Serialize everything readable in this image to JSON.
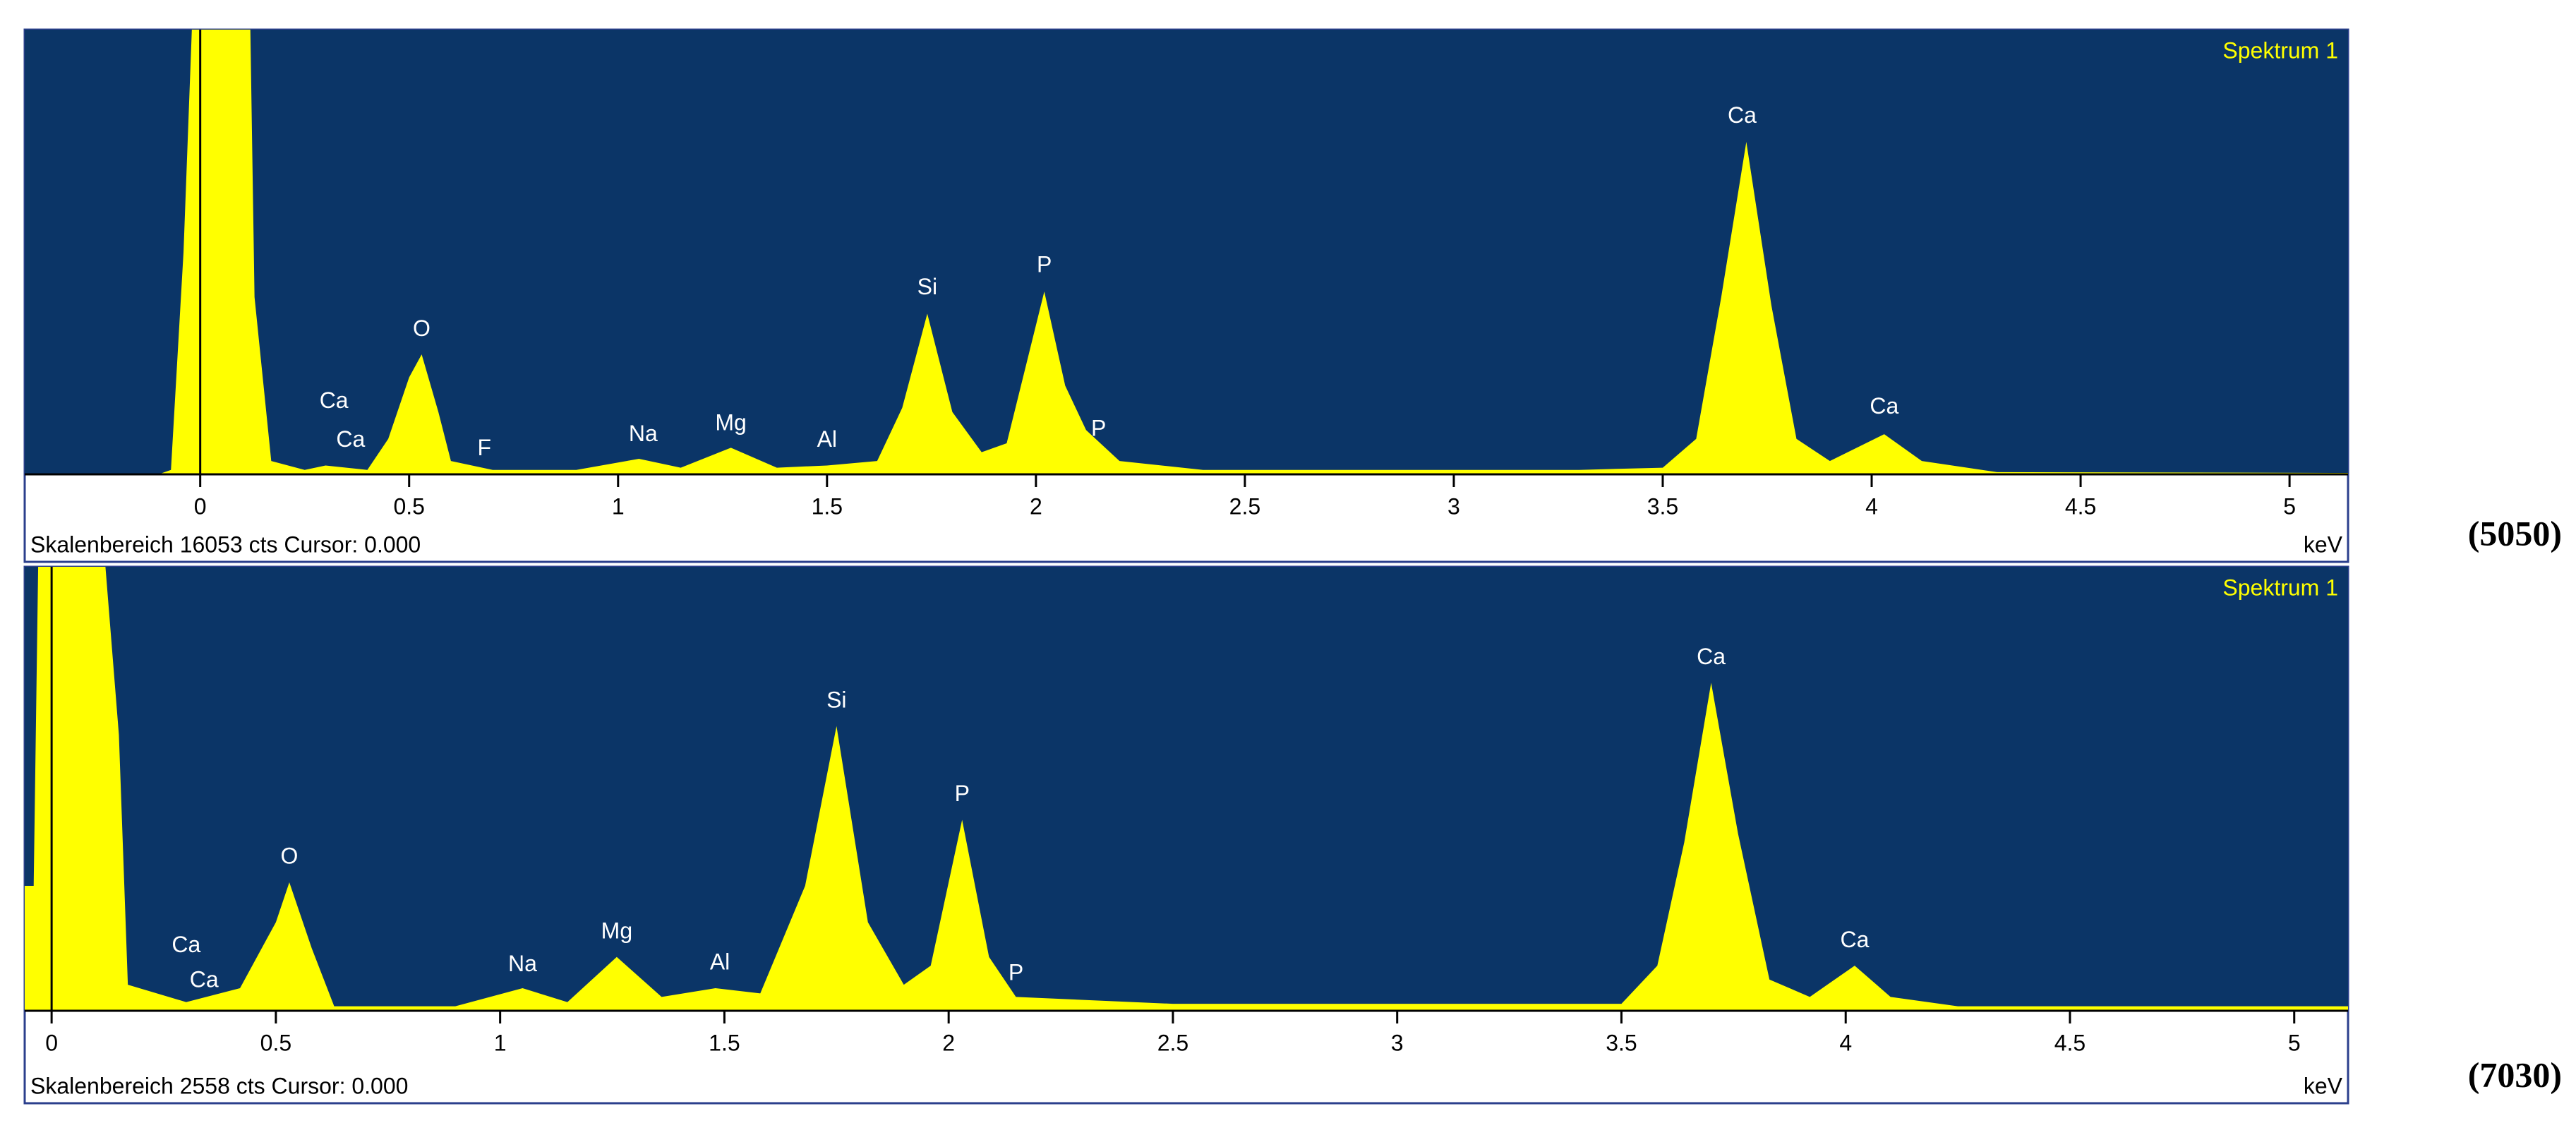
{
  "chart_data": [
    {
      "type": "area",
      "title": "Spektrum 1",
      "sample": "(5050)",
      "footer": "Skalenbereich 16053 cts Cursor: 0.000",
      "unit": "keV",
      "cursor": 0,
      "color": "#ffff00",
      "xlim": [
        -0.42,
        5.14
      ],
      "ylim": [
        0,
        16053
      ],
      "xticks": [
        0,
        0.5,
        1,
        1.5,
        2,
        2.5,
        3,
        3.5,
        4,
        4.5,
        5
      ],
      "x": [
        -0.42,
        -0.1,
        -0.07,
        -0.04,
        -0.02,
        0.12,
        0.13,
        0.17,
        0.25,
        0.3,
        0.4,
        0.45,
        0.5,
        0.53,
        0.57,
        0.6,
        0.7,
        0.9,
        1.05,
        1.15,
        1.27,
        1.38,
        1.5,
        1.62,
        1.68,
        1.74,
        1.8,
        1.87,
        1.93,
        2.02,
        2.07,
        2.12,
        2.2,
        2.4,
        3.0,
        3.3,
        3.5,
        3.58,
        3.64,
        3.7,
        3.76,
        3.82,
        3.9,
        4.03,
        4.12,
        4.3,
        5.14
      ],
      "values": [
        0,
        0,
        160,
        8000,
        16053,
        16053,
        6400,
        480,
        160,
        320,
        160,
        1280,
        3500,
        4330,
        2250,
        480,
        160,
        160,
        560,
        240,
        960,
        240,
        320,
        480,
        2400,
        5800,
        2250,
        800,
        1120,
        6600,
        3200,
        1600,
        480,
        160,
        160,
        160,
        240,
        1280,
        6400,
        12000,
        6100,
        1280,
        480,
        1450,
        480,
        80,
        50
      ],
      "annotations": [
        {
          "text": "Ca",
          "x": 0.32,
          "y": 2100
        },
        {
          "text": "Ca",
          "x": 0.36,
          "y": 700
        },
        {
          "text": "O",
          "x": 0.53,
          "y": 4700
        },
        {
          "text": "F",
          "x": 0.68,
          "y": 400
        },
        {
          "text": "Na",
          "x": 1.06,
          "y": 900
        },
        {
          "text": "Mg",
          "x": 1.27,
          "y": 1300
        },
        {
          "text": "Al",
          "x": 1.5,
          "y": 700
        },
        {
          "text": "Si",
          "x": 1.74,
          "y": 6200
        },
        {
          "text": "P",
          "x": 2.02,
          "y": 7000
        },
        {
          "text": "P",
          "x": 2.15,
          "y": 1100
        },
        {
          "text": "Ca",
          "x": 3.69,
          "y": 12400
        },
        {
          "text": "Ca",
          "x": 4.03,
          "y": 1900
        }
      ]
    },
    {
      "type": "area",
      "title": "Spektrum 1",
      "sample": "(7030)",
      "footer": "Skalenbereich 2558 cts Cursor: 0.000",
      "unit": "keV",
      "cursor": 0,
      "color": "#ffff00",
      "xlim": [
        -0.06,
        5.12
      ],
      "ylim": [
        0,
        2558
      ],
      "xticks": [
        0,
        0.5,
        1,
        1.5,
        2,
        2.5,
        3,
        3.5,
        4,
        4.5,
        5
      ],
      "x": [
        -0.06,
        -0.04,
        -0.03,
        0.12,
        0.15,
        0.17,
        0.3,
        0.42,
        0.5,
        0.53,
        0.58,
        0.63,
        0.9,
        1.05,
        1.15,
        1.26,
        1.36,
        1.48,
        1.58,
        1.68,
        1.75,
        1.82,
        1.9,
        1.96,
        2.03,
        2.09,
        2.15,
        2.5,
        3.5,
        3.58,
        3.64,
        3.7,
        3.76,
        3.83,
        3.92,
        4.02,
        4.1,
        4.25,
        5.12
      ],
      "values": [
        720,
        720,
        2558,
        2558,
        1590,
        150,
        50,
        130,
        510,
        740,
        360,
        26,
        26,
        130,
        50,
        310,
        80,
        130,
        100,
        720,
        1640,
        510,
        150,
        260,
        1100,
        310,
        80,
        40,
        40,
        260,
        970,
        1890,
        1020,
        180,
        80,
        260,
        80,
        26,
        26
      ],
      "annotations": [
        {
          "text": "Ca",
          "x": 0.3,
          "y": 290
        },
        {
          "text": "Ca",
          "x": 0.34,
          "y": 90
        },
        {
          "text": "O",
          "x": 0.53,
          "y": 800
        },
        {
          "text": "Na",
          "x": 1.05,
          "y": 180
        },
        {
          "text": "Mg",
          "x": 1.26,
          "y": 370
        },
        {
          "text": "Al",
          "x": 1.49,
          "y": 190
        },
        {
          "text": "Si",
          "x": 1.75,
          "y": 1700
        },
        {
          "text": "P",
          "x": 2.03,
          "y": 1160
        },
        {
          "text": "P",
          "x": 2.15,
          "y": 130
        },
        {
          "text": "Ca",
          "x": 3.7,
          "y": 1950
        },
        {
          "text": "Ca",
          "x": 4.02,
          "y": 320
        }
      ]
    }
  ]
}
